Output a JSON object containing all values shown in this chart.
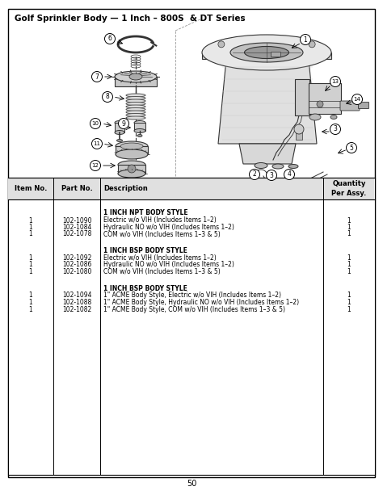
{
  "title": "Golf Sprinkler Body — 1 Inch – 800S  & DT Series",
  "page_number": "50",
  "table_headers": [
    "Item No.",
    "Part No.",
    "Description",
    "Quantity\nPer Assy."
  ],
  "sections": [
    {
      "section_title": "1 INCH NPT BODY STYLE",
      "rows": [
        {
          "item": "1",
          "part": "102-1090",
          "desc": "Electric w/o VIH (Includes Items 1–2)",
          "qty": "1"
        },
        {
          "item": "1",
          "part": "102-1084",
          "desc": "Hydraulic NO w/o VIH (Includes Items 1–2)",
          "qty": "1"
        },
        {
          "item": "1",
          "part": "102-1078",
          "desc": "COM w/o VIH (Includes Items 1–3 & 5)",
          "qty": "1"
        }
      ]
    },
    {
      "section_title": "1 INCH BSP BODY STYLE",
      "rows": [
        {
          "item": "1",
          "part": "102-1092",
          "desc": "Electric w/o VIH (Includes Items 1–2)",
          "qty": "1"
        },
        {
          "item": "1",
          "part": "102-1086",
          "desc": "Hydraulic NO w/o VIH (Includes Items 1–2)",
          "qty": "1"
        },
        {
          "item": "1",
          "part": "102-1080",
          "desc": "COM w/o VIH (Includes Items 1–3 & 5)",
          "qty": "1"
        }
      ]
    },
    {
      "section_title": "1 INCH BSP BODY STYLE",
      "rows": [
        {
          "item": "1",
          "part": "102-1094",
          "desc": "1\" ACME Body Style, Electric w/o VIH (Includes Items 1–2)",
          "qty": "1"
        },
        {
          "item": "1",
          "part": "102-1088",
          "desc": "1\" ACME Body Style, Hydraulic NO w/o VIH (Includes Items 1–2)",
          "qty": "1"
        },
        {
          "item": "1",
          "part": "102-1082",
          "desc": "1\" ACME Body Style, COM w/o VIH (Includes Items 1–3 & 5)",
          "qty": "1"
        }
      ]
    }
  ],
  "bg_color": "#ffffff",
  "border_color": "#000000",
  "lc": "#333333",
  "fc_light": "#dddddd",
  "fc_med": "#bbbbbb",
  "fc_dark": "#888888"
}
